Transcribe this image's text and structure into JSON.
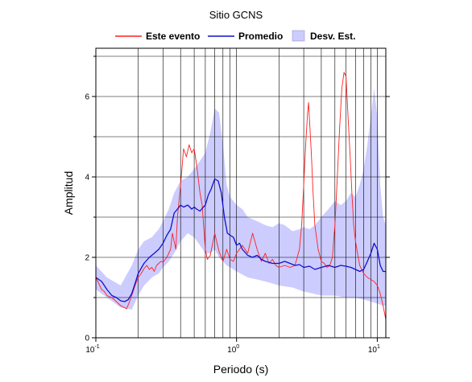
{
  "chart_data": {
    "type": "line",
    "title": "Sitio GCNS",
    "xlabel": "Periodo (s)",
    "ylabel": "Amplitud",
    "xscale": "log",
    "xlim": [
      0.1,
      11.5
    ],
    "ylim": [
      0,
      7.2
    ],
    "grid": true,
    "legend_position": "top",
    "x_ticks": [
      {
        "value": 0.1,
        "base": "10",
        "exp": "-1"
      },
      {
        "value": 1,
        "base": "10",
        "exp": "0"
      },
      {
        "value": 10,
        "base": "10",
        "exp": "1"
      }
    ],
    "y_ticks": [
      0,
      2,
      4,
      6
    ],
    "y_minor_grid": [
      1,
      3,
      5,
      7
    ],
    "series": [
      {
        "name": "Este evento",
        "color": "#ff2020",
        "points": [
          [
            0.1,
            1.5
          ],
          [
            0.105,
            1.35
          ],
          [
            0.11,
            1.2
          ],
          [
            0.115,
            1.15
          ],
          [
            0.12,
            1.05
          ],
          [
            0.13,
            1.0
          ],
          [
            0.14,
            0.9
          ],
          [
            0.15,
            0.8
          ],
          [
            0.16,
            0.75
          ],
          [
            0.165,
            0.72
          ],
          [
            0.17,
            0.82
          ],
          [
            0.18,
            1.05
          ],
          [
            0.19,
            1.3
          ],
          [
            0.2,
            1.5
          ],
          [
            0.21,
            1.6
          ],
          [
            0.22,
            1.72
          ],
          [
            0.23,
            1.8
          ],
          [
            0.24,
            1.7
          ],
          [
            0.25,
            1.75
          ],
          [
            0.26,
            1.65
          ],
          [
            0.27,
            1.8
          ],
          [
            0.28,
            1.85
          ],
          [
            0.29,
            1.9
          ],
          [
            0.3,
            1.88
          ],
          [
            0.32,
            2.0
          ],
          [
            0.34,
            2.2
          ],
          [
            0.35,
            2.6
          ],
          [
            0.37,
            2.2
          ],
          [
            0.38,
            3.0
          ],
          [
            0.4,
            3.8
          ],
          [
            0.42,
            4.7
          ],
          [
            0.44,
            4.5
          ],
          [
            0.46,
            4.8
          ],
          [
            0.48,
            4.6
          ],
          [
            0.5,
            4.7
          ],
          [
            0.52,
            4.3
          ],
          [
            0.55,
            3.6
          ],
          [
            0.57,
            3.3
          ],
          [
            0.6,
            2.2
          ],
          [
            0.62,
            1.95
          ],
          [
            0.65,
            2.05
          ],
          [
            0.7,
            2.6
          ],
          [
            0.75,
            2.15
          ],
          [
            0.8,
            1.9
          ],
          [
            0.85,
            2.2
          ],
          [
            0.9,
            1.95
          ],
          [
            0.95,
            1.9
          ],
          [
            1.0,
            2.1
          ],
          [
            1.1,
            2.3
          ],
          [
            1.2,
            2.1
          ],
          [
            1.3,
            2.6
          ],
          [
            1.4,
            2.2
          ],
          [
            1.5,
            1.9
          ],
          [
            1.6,
            2.1
          ],
          [
            1.7,
            1.85
          ],
          [
            1.8,
            1.95
          ],
          [
            1.9,
            1.8
          ],
          [
            2.0,
            1.75
          ],
          [
            2.2,
            1.8
          ],
          [
            2.4,
            1.75
          ],
          [
            2.6,
            1.8
          ],
          [
            2.8,
            2.2
          ],
          [
            2.9,
            2.8
          ],
          [
            3.0,
            3.8
          ],
          [
            3.1,
            4.8
          ],
          [
            3.2,
            5.6
          ],
          [
            3.25,
            5.85
          ],
          [
            3.3,
            5.4
          ],
          [
            3.4,
            4.6
          ],
          [
            3.5,
            3.6
          ],
          [
            3.6,
            2.8
          ],
          [
            3.8,
            2.2
          ],
          [
            4.0,
            1.9
          ],
          [
            4.2,
            1.85
          ],
          [
            4.4,
            1.75
          ],
          [
            4.6,
            1.8
          ],
          [
            4.8,
            2.0
          ],
          [
            5.0,
            2.8
          ],
          [
            5.2,
            4.0
          ],
          [
            5.4,
            5.2
          ],
          [
            5.6,
            6.2
          ],
          [
            5.8,
            6.6
          ],
          [
            6.0,
            6.5
          ],
          [
            6.2,
            5.5
          ],
          [
            6.4,
            4.6
          ],
          [
            6.6,
            3.6
          ],
          [
            6.8,
            2.8
          ],
          [
            7.0,
            2.4
          ],
          [
            7.5,
            1.8
          ],
          [
            8.0,
            1.6
          ],
          [
            8.5,
            1.5
          ],
          [
            9.0,
            1.45
          ],
          [
            9.5,
            1.4
          ],
          [
            10.0,
            1.3
          ],
          [
            10.5,
            1.1
          ],
          [
            11.0,
            0.8
          ],
          [
            11.5,
            0.45
          ]
        ]
      },
      {
        "name": "Promedio",
        "color": "#1010cc",
        "points": [
          [
            0.1,
            1.5
          ],
          [
            0.11,
            1.4
          ],
          [
            0.12,
            1.2
          ],
          [
            0.13,
            1.05
          ],
          [
            0.14,
            1.0
          ],
          [
            0.15,
            0.92
          ],
          [
            0.16,
            0.9
          ],
          [
            0.17,
            0.95
          ],
          [
            0.18,
            1.1
          ],
          [
            0.19,
            1.35
          ],
          [
            0.2,
            1.6
          ],
          [
            0.22,
            1.85
          ],
          [
            0.24,
            2.0
          ],
          [
            0.26,
            2.1
          ],
          [
            0.28,
            2.2
          ],
          [
            0.3,
            2.35
          ],
          [
            0.32,
            2.55
          ],
          [
            0.34,
            2.7
          ],
          [
            0.36,
            3.1
          ],
          [
            0.38,
            3.2
          ],
          [
            0.4,
            3.3
          ],
          [
            0.42,
            3.25
          ],
          [
            0.45,
            3.3
          ],
          [
            0.48,
            3.2
          ],
          [
            0.5,
            3.25
          ],
          [
            0.52,
            3.2
          ],
          [
            0.55,
            3.15
          ],
          [
            0.58,
            3.25
          ],
          [
            0.6,
            3.3
          ],
          [
            0.63,
            3.55
          ],
          [
            0.66,
            3.7
          ],
          [
            0.7,
            3.95
          ],
          [
            0.74,
            3.9
          ],
          [
            0.78,
            3.6
          ],
          [
            0.82,
            3.0
          ],
          [
            0.86,
            2.6
          ],
          [
            0.9,
            2.55
          ],
          [
            0.95,
            2.5
          ],
          [
            1.0,
            2.3
          ],
          [
            1.05,
            2.35
          ],
          [
            1.1,
            2.2
          ],
          [
            1.2,
            2.05
          ],
          [
            1.3,
            2.0
          ],
          [
            1.4,
            2.05
          ],
          [
            1.5,
            1.95
          ],
          [
            1.6,
            1.9
          ],
          [
            1.8,
            1.85
          ],
          [
            2.0,
            1.85
          ],
          [
            2.2,
            1.9
          ],
          [
            2.4,
            1.85
          ],
          [
            2.6,
            1.8
          ],
          [
            2.8,
            1.82
          ],
          [
            3.0,
            1.75
          ],
          [
            3.3,
            1.78
          ],
          [
            3.6,
            1.7
          ],
          [
            4.0,
            1.75
          ],
          [
            4.5,
            1.8
          ],
          [
            5.0,
            1.75
          ],
          [
            5.5,
            1.8
          ],
          [
            6.0,
            1.78
          ],
          [
            6.5,
            1.75
          ],
          [
            7.0,
            1.7
          ],
          [
            7.5,
            1.65
          ],
          [
            8.0,
            1.7
          ],
          [
            8.5,
            1.9
          ],
          [
            9.0,
            2.1
          ],
          [
            9.5,
            2.35
          ],
          [
            10.0,
            2.2
          ],
          [
            10.5,
            1.8
          ],
          [
            11.0,
            1.65
          ],
          [
            11.5,
            1.65
          ]
        ]
      },
      {
        "name": "Desv. Est.",
        "type": "band",
        "color": "#ccccff",
        "upper": [
          [
            0.1,
            1.8
          ],
          [
            0.12,
            1.5
          ],
          [
            0.15,
            1.3
          ],
          [
            0.18,
            1.8
          ],
          [
            0.2,
            2.2
          ],
          [
            0.22,
            2.4
          ],
          [
            0.25,
            2.5
          ],
          [
            0.28,
            2.7
          ],
          [
            0.3,
            2.9
          ],
          [
            0.33,
            3.2
          ],
          [
            0.36,
            3.6
          ],
          [
            0.4,
            3.9
          ],
          [
            0.45,
            4.0
          ],
          [
            0.5,
            4.2
          ],
          [
            0.55,
            4.4
          ],
          [
            0.6,
            4.6
          ],
          [
            0.65,
            5.1
          ],
          [
            0.7,
            5.7
          ],
          [
            0.75,
            5.6
          ],
          [
            0.8,
            4.8
          ],
          [
            0.85,
            3.8
          ],
          [
            0.9,
            3.5
          ],
          [
            1.0,
            3.3
          ],
          [
            1.1,
            3.2
          ],
          [
            1.2,
            3.0
          ],
          [
            1.4,
            2.9
          ],
          [
            1.6,
            2.8
          ],
          [
            1.8,
            2.75
          ],
          [
            2.0,
            2.85
          ],
          [
            2.2,
            2.8
          ],
          [
            2.5,
            2.65
          ],
          [
            2.8,
            2.7
          ],
          [
            3.0,
            2.75
          ],
          [
            3.3,
            2.7
          ],
          [
            3.6,
            2.8
          ],
          [
            4.0,
            3.0
          ],
          [
            4.5,
            3.2
          ],
          [
            5.0,
            3.4
          ],
          [
            5.5,
            3.3
          ],
          [
            6.0,
            3.4
          ],
          [
            6.5,
            3.6
          ],
          [
            7.0,
            3.5
          ],
          [
            7.5,
            3.8
          ],
          [
            8.0,
            4.2
          ],
          [
            8.5,
            4.8
          ],
          [
            9.0,
            5.5
          ],
          [
            9.5,
            6.2
          ],
          [
            10.0,
            5.5
          ],
          [
            10.5,
            3.8
          ],
          [
            11.0,
            3.0
          ],
          [
            11.5,
            2.8
          ]
        ],
        "lower": [
          [
            0.1,
            1.2
          ],
          [
            0.12,
            1.0
          ],
          [
            0.15,
            0.75
          ],
          [
            0.18,
            0.7
          ],
          [
            0.2,
            1.05
          ],
          [
            0.22,
            1.3
          ],
          [
            0.25,
            1.5
          ],
          [
            0.28,
            1.6
          ],
          [
            0.3,
            1.75
          ],
          [
            0.33,
            1.9
          ],
          [
            0.36,
            2.1
          ],
          [
            0.4,
            2.4
          ],
          [
            0.45,
            2.6
          ],
          [
            0.5,
            2.5
          ],
          [
            0.55,
            2.3
          ],
          [
            0.6,
            2.1
          ],
          [
            0.65,
            2.1
          ],
          [
            0.7,
            2.2
          ],
          [
            0.75,
            2.0
          ],
          [
            0.8,
            1.9
          ],
          [
            0.85,
            1.8
          ],
          [
            0.9,
            1.75
          ],
          [
            1.0,
            1.65
          ],
          [
            1.2,
            1.5
          ],
          [
            1.4,
            1.45
          ],
          [
            1.6,
            1.4
          ],
          [
            1.8,
            1.35
          ],
          [
            2.0,
            1.3
          ],
          [
            2.5,
            1.25
          ],
          [
            3.0,
            1.15
          ],
          [
            3.5,
            1.1
          ],
          [
            4.0,
            1.05
          ],
          [
            5.0,
            1.05
          ],
          [
            6.0,
            1.0
          ],
          [
            7.0,
            1.0
          ],
          [
            8.0,
            0.95
          ],
          [
            9.0,
            0.9
          ],
          [
            10.0,
            0.85
          ],
          [
            11.0,
            0.8
          ],
          [
            11.5,
            0.8
          ]
        ]
      }
    ]
  }
}
